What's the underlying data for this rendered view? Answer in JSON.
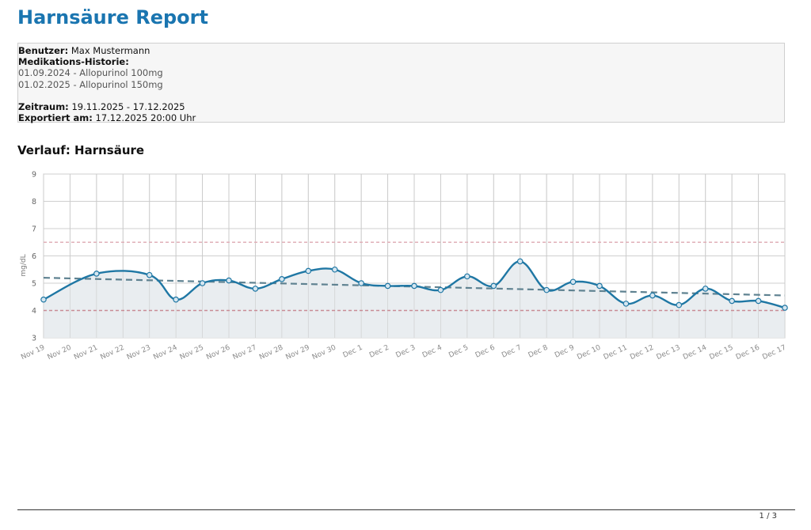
{
  "report": {
    "title": "Harnsäure Report"
  },
  "info": {
    "user_label": "Benutzer:",
    "user_value": "Max Mustermann",
    "medication_label": "Medikations-Historie:",
    "medications": [
      "01.09.2024 - Allopurinol 100mg",
      "01.02.2025 - Allopurinol 150mg"
    ],
    "period_label": "Zeitraum:",
    "period_value": "19.11.2025 - 17.12.2025",
    "exported_label": "Exportiert am:",
    "exported_value": "17.12.2025 20:00 Uhr"
  },
  "section": {
    "title": "Verlauf: Harnsäure"
  },
  "chart_data": {
    "type": "line",
    "title": "",
    "xlabel": "",
    "ylabel": "mg/dL",
    "ylim": [
      3,
      9
    ],
    "yticks": [
      3,
      4,
      5,
      6,
      7,
      8,
      9
    ],
    "grid": true,
    "categories": [
      "Nov 19",
      "Nov 20",
      "Nov 21",
      "Nov 22",
      "Nov 23",
      "Nov 24",
      "Nov 25",
      "Nov 26",
      "Nov 27",
      "Nov 28",
      "Nov 29",
      "Nov 30",
      "Dec 1",
      "Dec 2",
      "Dec 3",
      "Dec 4",
      "Dec 5",
      "Dec 6",
      "Dec 7",
      "Dec 8",
      "Dec 9",
      "Dec 10",
      "Dec 11",
      "Dec 12",
      "Dec 13",
      "Dec 14",
      "Dec 15",
      "Dec 16",
      "Dec 17"
    ],
    "series": [
      {
        "values": [
          4.4,
          null,
          5.35,
          null,
          5.3,
          4.4,
          5.0,
          5.1,
          4.8,
          5.15,
          5.45,
          5.5,
          5.0,
          4.9,
          4.9,
          4.75,
          5.25,
          4.9,
          5.8,
          4.75,
          5.05,
          4.9,
          4.25,
          4.55,
          4.2,
          4.8,
          4.35,
          4.35,
          4.1
        ],
        "color": "#1f77a4"
      }
    ],
    "trend": {
      "start": 5.2,
      "end": 4.55,
      "color": "#5f8291"
    },
    "reference_lines": [
      {
        "value": 6.5,
        "color": "#e0b0b8"
      },
      {
        "value": 4.0,
        "color": "#c98c95"
      }
    ],
    "fill_color": "#e8ecef"
  },
  "footer": {
    "page": "1 / 3"
  }
}
